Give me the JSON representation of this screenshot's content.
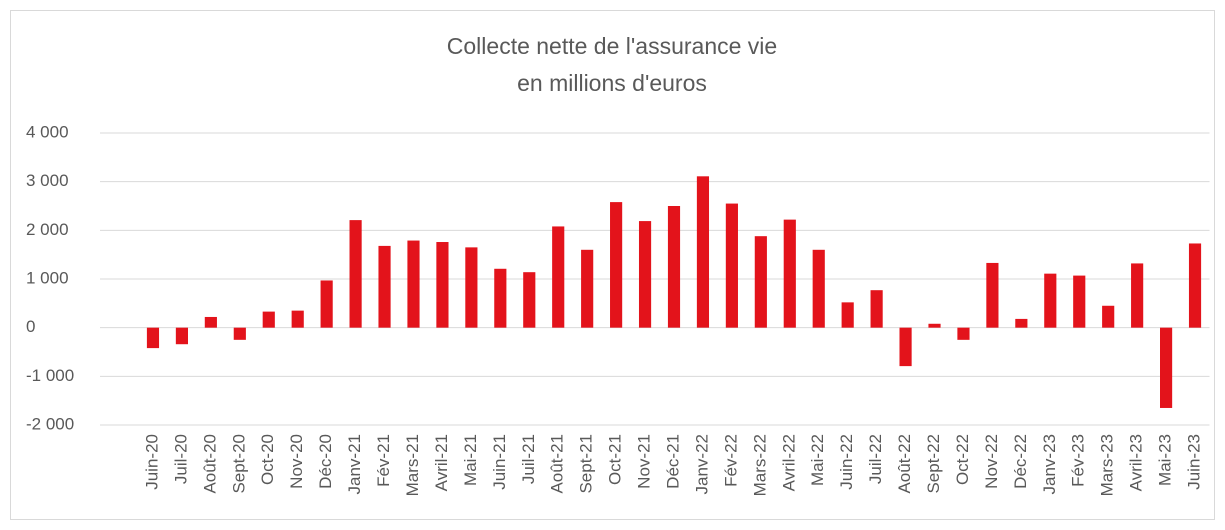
{
  "chart_data": {
    "type": "bar",
    "title": "Collecte nette de l'assurance vie",
    "subtitle": "en millions d'euros",
    "categories": [
      "Juin-20",
      "Juil-20",
      "Août-20",
      "Sept-20",
      "Oct-20",
      "Nov-20",
      "Déc-20",
      "Janv-21",
      "Fév-21",
      "Mars-21",
      "Avril-21",
      "Mai-21",
      "Juin-21",
      "Juil-21",
      "Août-21",
      "Sept-21",
      "Oct-21",
      "Nov-21",
      "Déc-21",
      "Janv-22",
      "Fév-22",
      "Mars-22",
      "Avril-22",
      "Mai-22",
      "Juin-22",
      "Juil-22",
      "Août-22",
      "Sept-22",
      "Oct-22",
      "Nov-22",
      "Déc-22",
      "Janv-23",
      "Fév-23",
      "Mars-23",
      "Avril-23",
      "Mai-23",
      "Juin-23"
    ],
    "values": [
      -420,
      -340,
      220,
      -250,
      330,
      350,
      970,
      2210,
      1680,
      1790,
      1760,
      1650,
      1210,
      1140,
      2080,
      1600,
      2580,
      2190,
      2500,
      3110,
      2550,
      1880,
      2220,
      1600,
      520,
      770,
      -790,
      80,
      -250,
      1330,
      180,
      1110,
      1070,
      450,
      1320,
      -1650,
      1730
    ],
    "color": "#e3131b",
    "ylim": [
      -2000,
      4000
    ],
    "yticks": [
      {
        "value": -2000,
        "label": "-2 000"
      },
      {
        "value": -1000,
        "label": "-1 000"
      },
      0,
      {
        "value": 1000,
        "label": "1 000"
      },
      {
        "value": 2000,
        "label": "2 000"
      },
      {
        "value": 3000,
        "label": "3 000"
      },
      {
        "value": 4000,
        "label": "4 000"
      }
    ],
    "grid": true
  }
}
